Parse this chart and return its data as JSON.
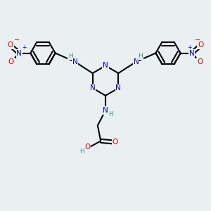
{
  "bg_color": "#eaeff2",
  "atom_colors": {
    "C": "#000000",
    "N": "#0000ee",
    "O": "#ee0000",
    "H": "#4a8a80"
  },
  "bond_color": "#000000",
  "bond_width": 1.5,
  "font_size_atom": 7.5,
  "font_size_h": 6.5
}
